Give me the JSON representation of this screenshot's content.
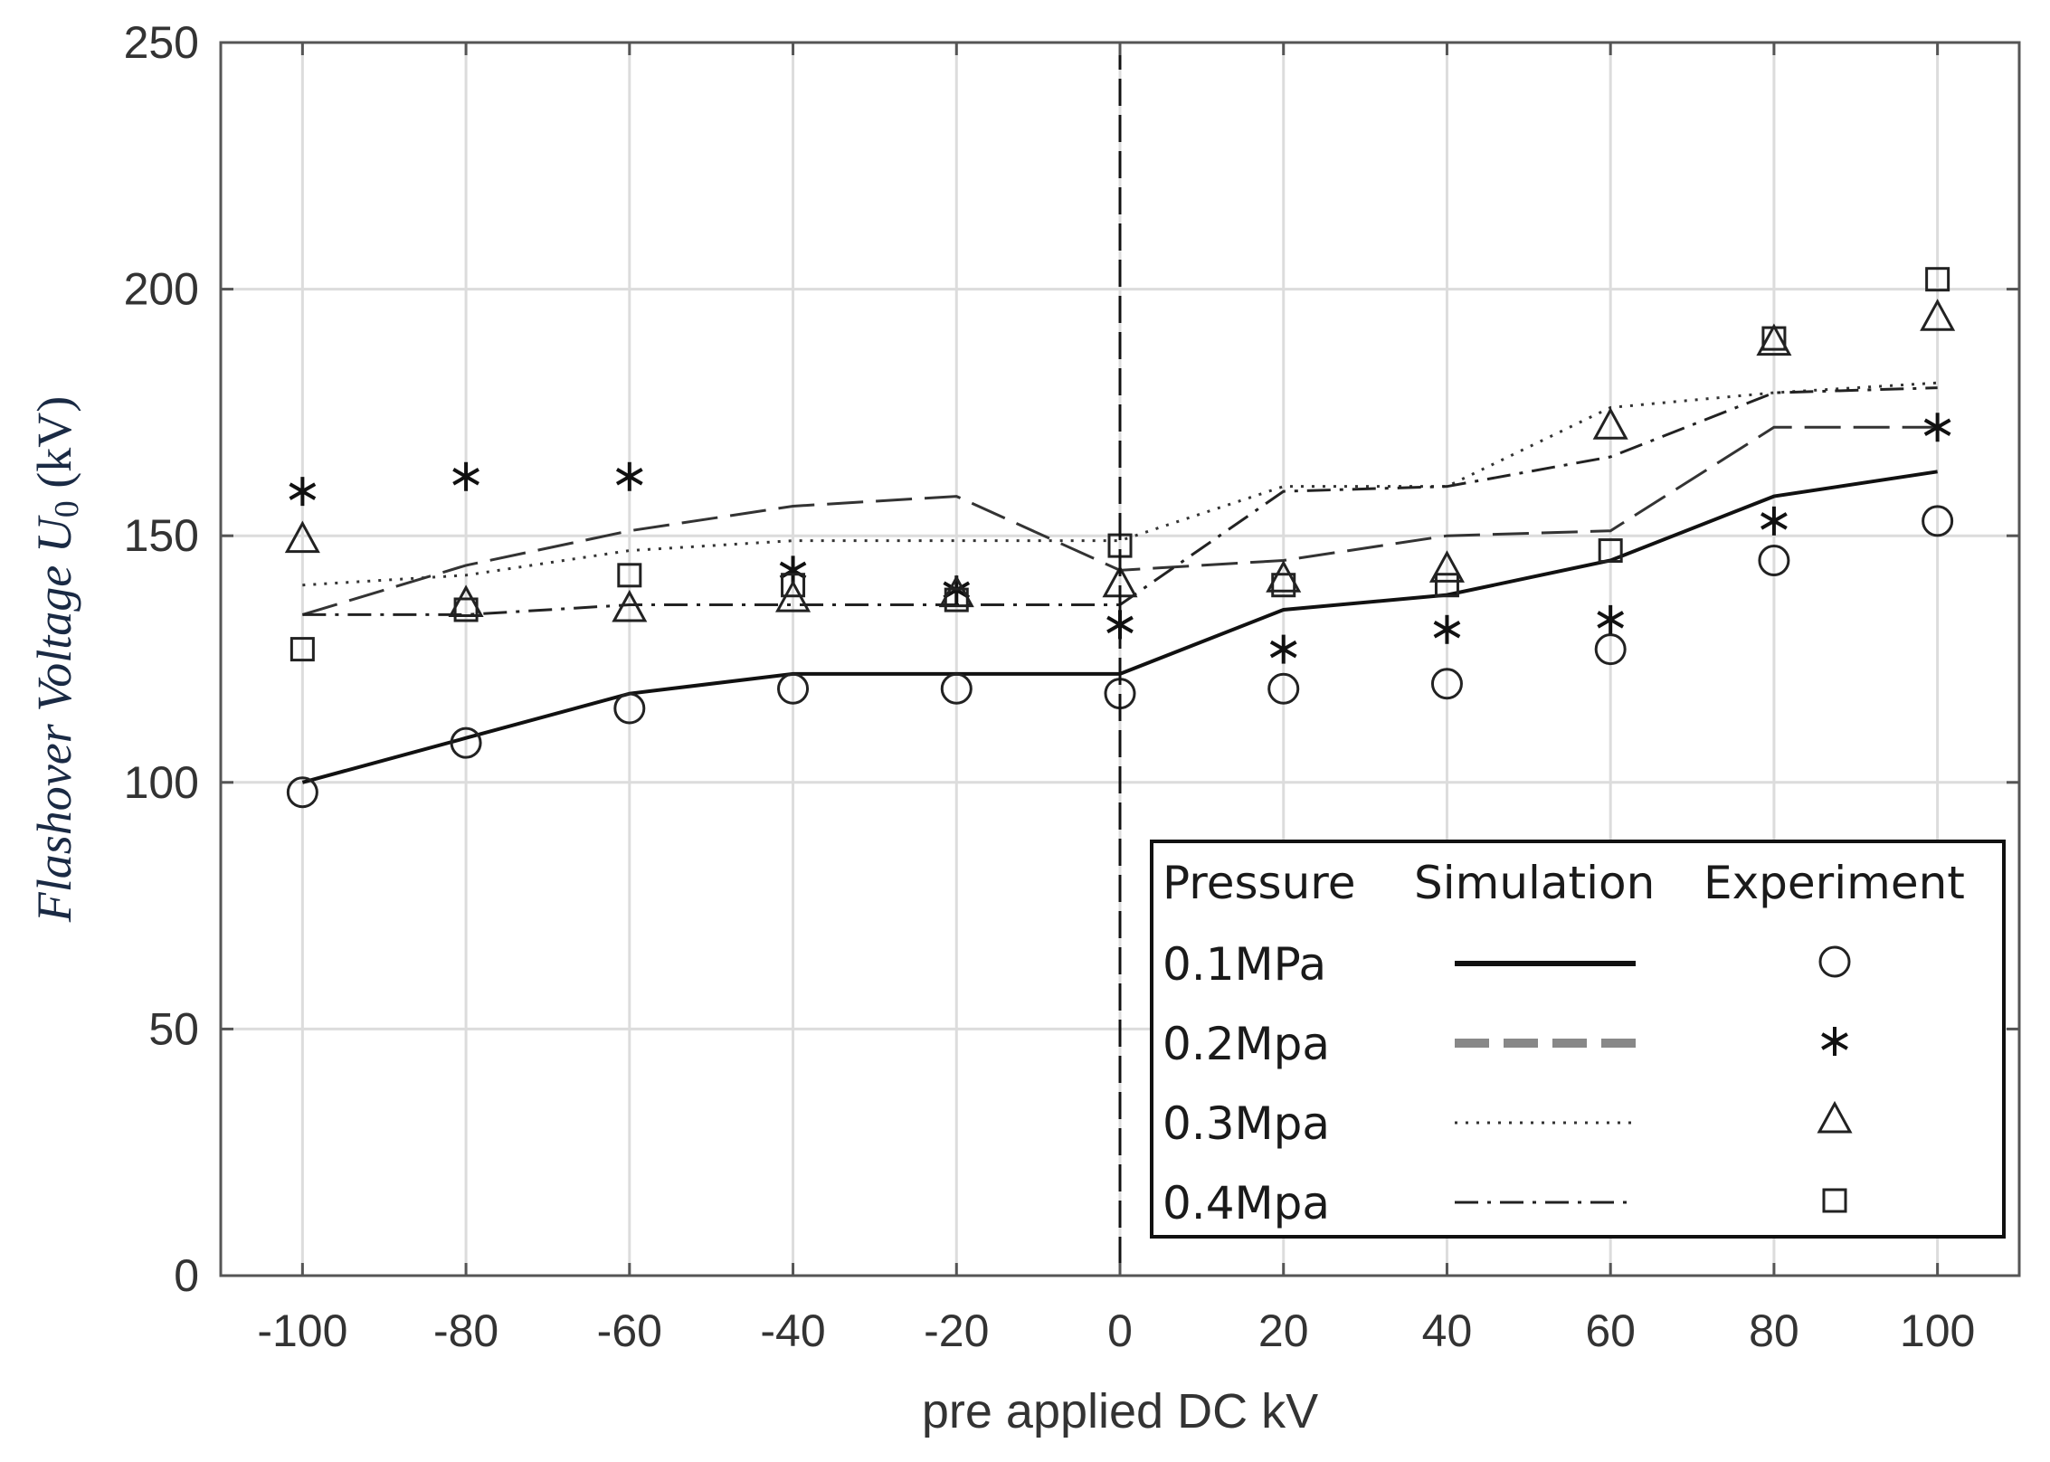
{
  "chart_data": {
    "type": "line",
    "xlabel": "pre applied DC kV",
    "ylabel": "Flashover Voltage U",
    "ylabel_subscript": "0",
    "ylabel_unit": "(kV)",
    "x_ticks": [
      "-100",
      "-80",
      "-60",
      "-40",
      "-20",
      "0",
      "20",
      "40",
      "60",
      "80",
      "100"
    ],
    "y_ticks": [
      "0",
      "50",
      "100",
      "150",
      "200",
      "250"
    ],
    "xlim": [
      -110,
      110
    ],
    "ylim": [
      0,
      250
    ],
    "grid": true,
    "vertical_marker_x": 0,
    "legend_position": "bottom-right",
    "legend": {
      "headers": [
        "Pressure",
        "Simulation",
        "Experiment"
      ],
      "entries": [
        "0.1MPa",
        "0.2Mpa",
        "0.3Mpa",
        "0.4Mpa"
      ]
    },
    "x": [
      -100,
      -80,
      -60,
      -40,
      -20,
      0,
      20,
      40,
      60,
      80,
      100
    ],
    "simulation": [
      {
        "name": "0.1MPa",
        "style": "solid",
        "values": [
          100,
          109,
          118,
          122,
          122,
          122,
          135,
          138,
          145,
          158,
          163
        ]
      },
      {
        "name": "0.2Mpa",
        "style": "dashed",
        "values": [
          134,
          144,
          151,
          156,
          158,
          143,
          145,
          150,
          151,
          172,
          172
        ]
      },
      {
        "name": "0.3Mpa",
        "style": "dotted",
        "values": [
          140,
          142,
          147,
          149,
          149,
          149,
          160,
          160,
          176,
          179,
          181
        ]
      },
      {
        "name": "0.4Mpa",
        "style": "dashdot",
        "values": [
          134,
          134,
          136,
          136,
          136,
          136,
          159,
          160,
          166,
          179,
          180
        ]
      }
    ],
    "experiment": [
      {
        "name": "0.1MPa",
        "marker": "circle",
        "values": [
          98,
          108,
          115,
          119,
          119,
          118,
          119,
          120,
          127,
          145,
          153
        ]
      },
      {
        "name": "0.2Mpa",
        "marker": "asterisk",
        "values": [
          159,
          162,
          162,
          143,
          139,
          132,
          127,
          131,
          133,
          153,
          172
        ]
      },
      {
        "name": "0.3Mpa",
        "marker": "triangle",
        "values": [
          149,
          136,
          135,
          137,
          138,
          140,
          141,
          143,
          172,
          189,
          194
        ]
      },
      {
        "name": "0.4Mpa",
        "marker": "square",
        "values": [
          127,
          135,
          142,
          140,
          137,
          148,
          140,
          140,
          147,
          190,
          202
        ]
      }
    ]
  }
}
